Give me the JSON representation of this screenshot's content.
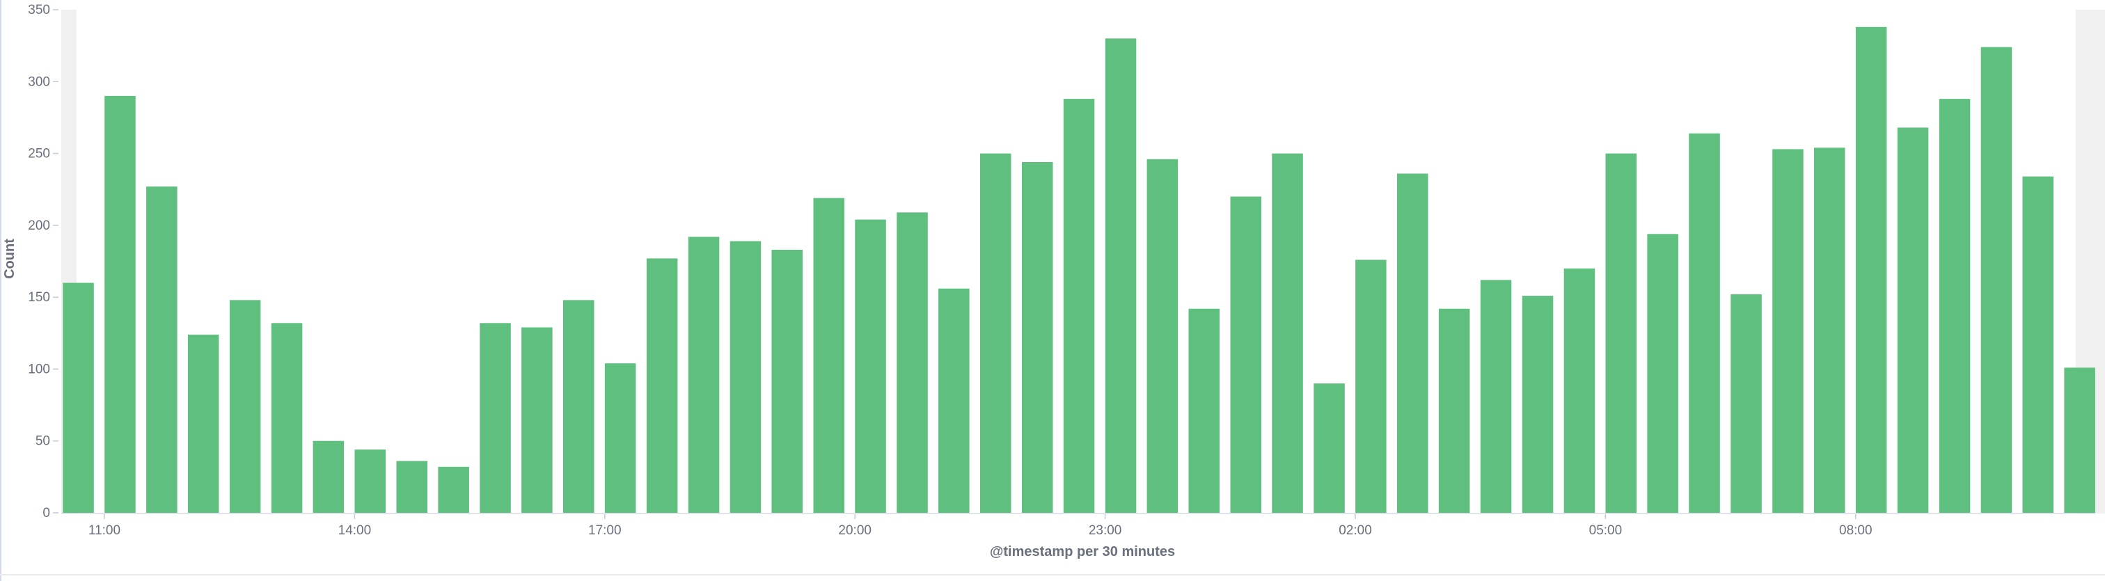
{
  "chart_data": {
    "type": "bar",
    "xlabel": "@timestamp per 30 minutes",
    "ylabel": "Count",
    "ylim": [
      0,
      350
    ],
    "yticks": [
      0,
      50,
      100,
      150,
      200,
      250,
      300,
      350
    ],
    "x_tick_labels": [
      "11:00",
      "14:00",
      "17:00",
      "20:00",
      "23:00",
      "02:00",
      "05:00",
      "08:00"
    ],
    "x_start": "10:30",
    "interval_minutes": 30,
    "values": [
      160,
      290,
      227,
      124,
      148,
      132,
      50,
      44,
      36,
      32,
      132,
      129,
      148,
      104,
      177,
      192,
      189,
      183,
      219,
      204,
      209,
      156,
      250,
      244,
      288,
      330,
      246,
      142,
      220,
      250,
      90,
      176,
      236,
      142,
      162,
      151,
      170,
      250,
      194,
      264,
      152,
      253,
      254,
      338,
      268,
      288,
      324,
      234,
      101
    ],
    "bar_color": "#5ebf7e",
    "grid": false,
    "legend": "none"
  }
}
